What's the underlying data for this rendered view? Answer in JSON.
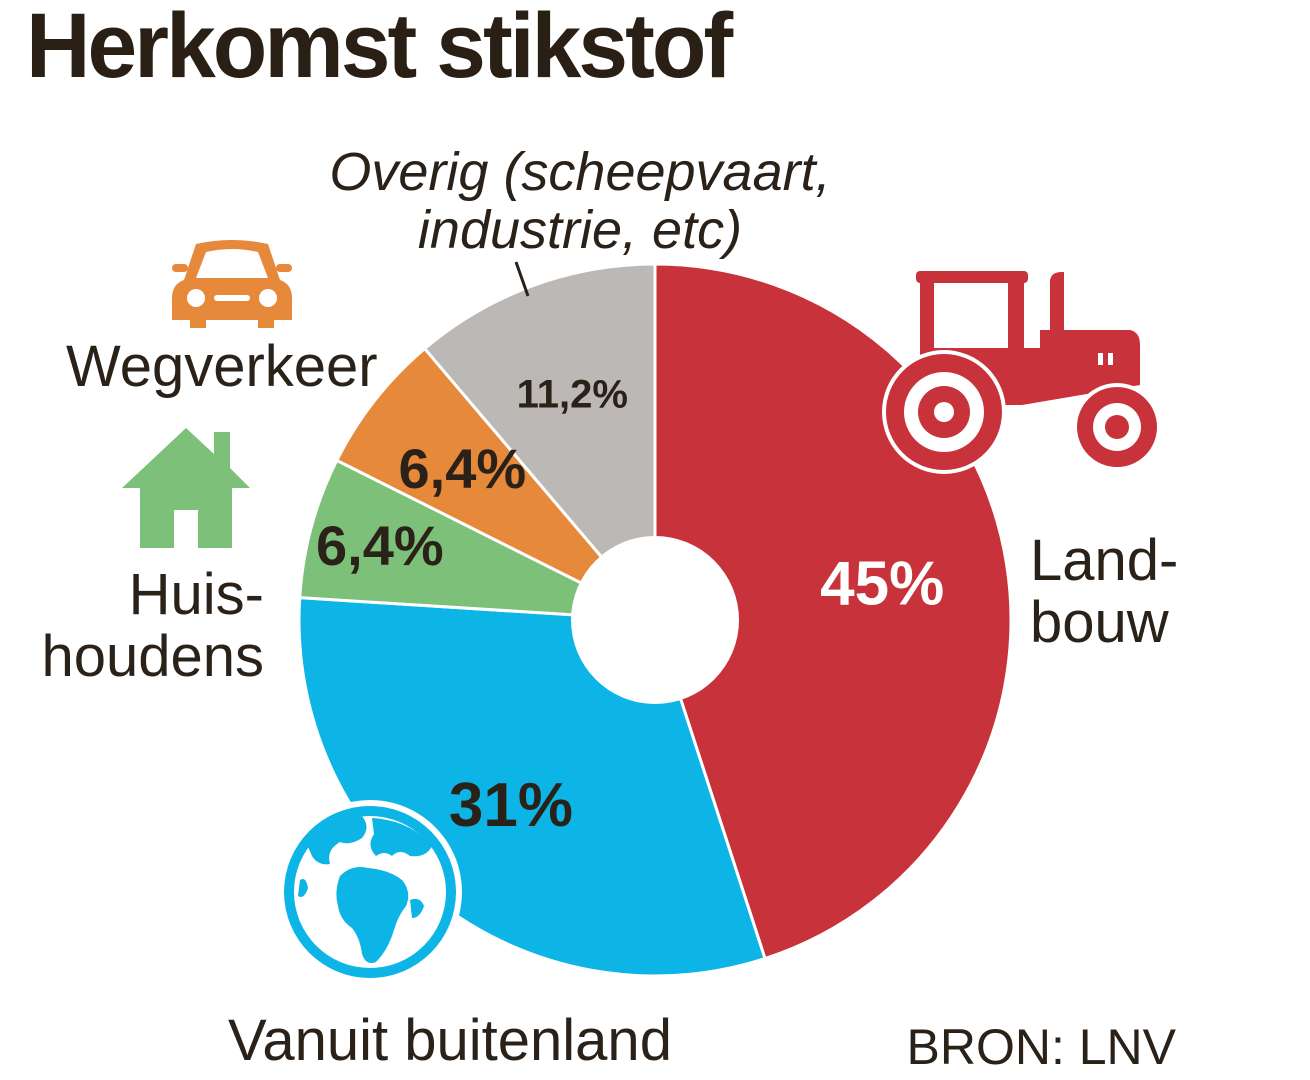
{
  "chart_data": {
    "type": "pie",
    "title": "Herkomst stikstof",
    "source": "BRON: LNV",
    "slices": [
      {
        "name_lines": [
          "Land-",
          "bouw"
        ],
        "value": 45,
        "label": "45%",
        "color": "#c8323a",
        "label_color": "#ffffff"
      },
      {
        "name_lines": [
          "Vanuit buitenland"
        ],
        "value": 31,
        "label": "31%",
        "color": "#0db5e6",
        "label_color": "#2a2118"
      },
      {
        "name_lines": [
          "Huis-",
          "houdens"
        ],
        "value": 6.4,
        "label": "6,4%",
        "color": "#7dc07a",
        "label_color": "#2a2118"
      },
      {
        "name_lines": [
          "Wegverkeer"
        ],
        "value": 6.4,
        "label": "6,4%",
        "color": "#e6893a",
        "label_color": "#2a2118"
      },
      {
        "name_lines": [
          "Overig (scheepvaart,",
          "industrie, etc)"
        ],
        "value": 11.2,
        "label": "11,2%",
        "color": "#bcb8b5",
        "label_color": "#2a2118"
      }
    ],
    "icons": {
      "landbouw": "tractor-icon",
      "buitenland": "globe-icon",
      "huishoudens": "house-icon",
      "wegverkeer": "car-icon"
    },
    "icon_colors": {
      "tractor": "#c8323a",
      "globe": "#0db5e6",
      "house": "#7dc07a",
      "car": "#e6893a"
    }
  }
}
